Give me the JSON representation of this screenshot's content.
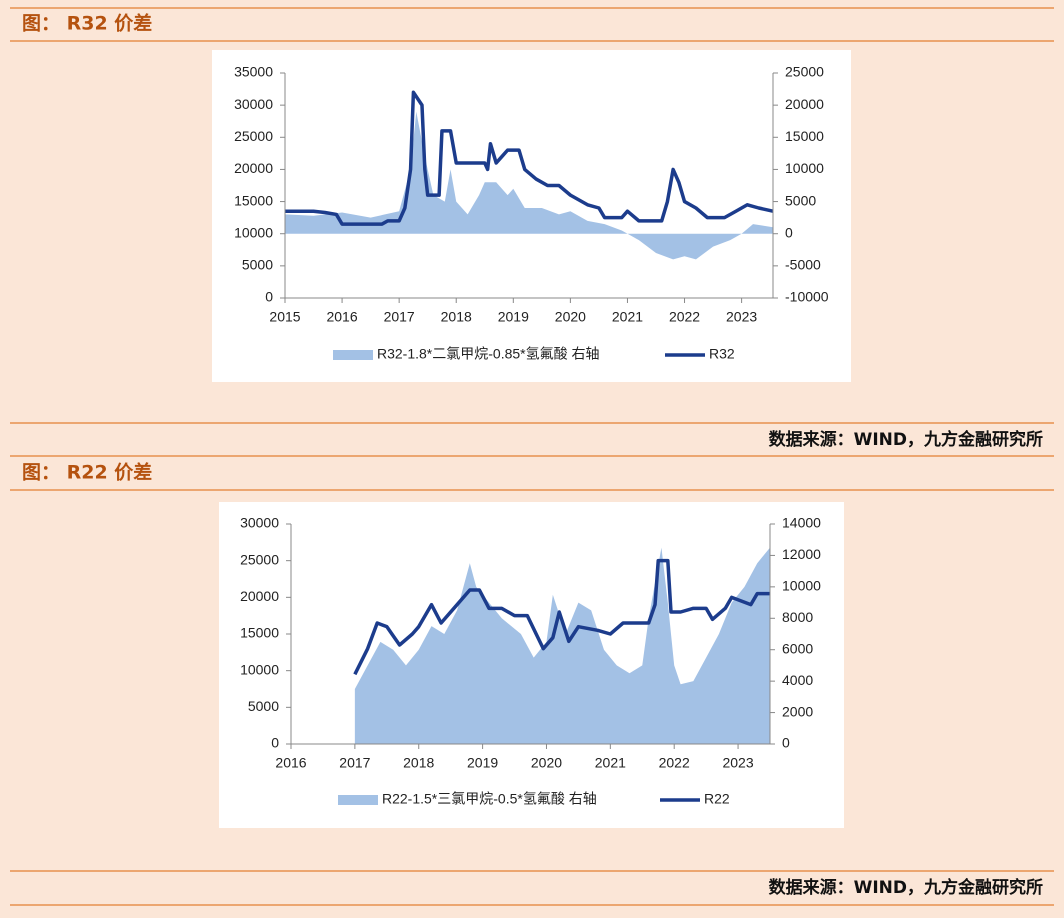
{
  "chart_data": [
    {
      "type": "combo",
      "title": "图： R32 价差",
      "source": "数据来源：WIND，九方金融研究所",
      "xlim": [
        2015,
        2023.55
      ],
      "xticks": [
        2015,
        2016,
        2017,
        2018,
        2019,
        2020,
        2021,
        2022,
        2023
      ],
      "ylim": [
        0,
        35000
      ],
      "yticks": [
        0,
        5000,
        10000,
        15000,
        20000,
        25000,
        30000,
        35000
      ],
      "y2lim": [
        -10000,
        25000
      ],
      "y2ticks": [
        -10000,
        -5000,
        0,
        5000,
        10000,
        15000,
        20000,
        25000
      ],
      "legend": "bottom",
      "series": [
        {
          "name": "R32-1.8*二氯甲烷-0.85*氢氟酸 右轴",
          "color": "#a3c1e5",
          "style": "area",
          "axis": "y2",
          "x": [
            2015.0,
            2015.5,
            2016.0,
            2016.5,
            2017.0,
            2017.2,
            2017.3,
            2017.45,
            2017.6,
            2017.8,
            2017.9,
            2018.0,
            2018.2,
            2018.4,
            2018.5,
            2018.7,
            2018.9,
            2019.0,
            2019.2,
            2019.5,
            2019.8,
            2020.0,
            2020.3,
            2020.6,
            2020.9,
            2021.2,
            2021.5,
            2021.8,
            2022.0,
            2022.2,
            2022.5,
            2022.8,
            2023.0,
            2023.2,
            2023.55
          ],
          "values": [
            3000,
            2800,
            3300,
            2500,
            3500,
            10000,
            19000,
            12000,
            6000,
            5000,
            10000,
            5000,
            3000,
            6000,
            8000,
            8000,
            6000,
            7000,
            4000,
            4000,
            3000,
            3500,
            2000,
            1500,
            500,
            -1000,
            -3000,
            -4000,
            -3500,
            -4000,
            -2000,
            -1000,
            0,
            1500,
            1000
          ]
        },
        {
          "name": "R32",
          "color": "#1c3c8c",
          "style": "line",
          "axis": "y",
          "x": [
            2015.0,
            2015.5,
            2015.7,
            2015.9,
            2016.0,
            2016.3,
            2016.7,
            2016.8,
            2017.0,
            2017.1,
            2017.2,
            2017.25,
            2017.4,
            2017.45,
            2017.5,
            2017.7,
            2017.75,
            2017.9,
            2018.0,
            2018.5,
            2018.55,
            2018.6,
            2018.7,
            2018.8,
            2018.9,
            2019.1,
            2019.2,
            2019.4,
            2019.6,
            2019.8,
            2020.0,
            2020.3,
            2020.5,
            2020.6,
            2020.9,
            2021.0,
            2021.2,
            2021.6,
            2021.7,
            2021.8,
            2021.9,
            2022.0,
            2022.2,
            2022.4,
            2022.7,
            2022.9,
            2023.1,
            2023.3,
            2023.55
          ],
          "values": [
            13500,
            13500,
            13300,
            13000,
            11500,
            11500,
            11500,
            12000,
            12000,
            14000,
            20000,
            32000,
            30000,
            20000,
            16000,
            16000,
            26000,
            26000,
            21000,
            21000,
            20000,
            24000,
            21000,
            22000,
            23000,
            23000,
            20000,
            18500,
            17500,
            17500,
            16000,
            14500,
            14000,
            12500,
            12500,
            13500,
            12000,
            12000,
            15000,
            20000,
            18000,
            15000,
            14000,
            12500,
            12500,
            13500,
            14500,
            14000,
            13500
          ]
        }
      ]
    },
    {
      "type": "combo",
      "title": "图： R22 价差",
      "source": "数据来源：WIND，九方金融研究所",
      "xlim": [
        2016,
        2023.5
      ],
      "xticks": [
        2016,
        2017,
        2018,
        2019,
        2020,
        2021,
        2022,
        2023
      ],
      "ylim": [
        0,
        30000
      ],
      "yticks": [
        0,
        5000,
        10000,
        15000,
        20000,
        25000,
        30000
      ],
      "y2lim": [
        0,
        14000
      ],
      "y2ticks": [
        0,
        2000,
        4000,
        6000,
        8000,
        10000,
        12000,
        14000
      ],
      "legend": "bottom",
      "series": [
        {
          "name": "R22-1.5*三氯甲烷-0.5*氢氟酸 右轴",
          "color": "#a3c1e5",
          "style": "area",
          "axis": "y2",
          "x": [
            2017.0,
            2017.2,
            2017.4,
            2017.6,
            2017.8,
            2018.0,
            2018.2,
            2018.4,
            2018.6,
            2018.8,
            2018.9,
            2019.1,
            2019.3,
            2019.6,
            2019.8,
            2020.0,
            2020.1,
            2020.3,
            2020.5,
            2020.7,
            2020.9,
            2021.1,
            2021.3,
            2021.5,
            2021.6,
            2021.8,
            2021.9,
            2022.0,
            2022.1,
            2022.3,
            2022.5,
            2022.7,
            2022.9,
            2023.1,
            2023.3,
            2023.5
          ],
          "values": [
            3500,
            5000,
            6500,
            6000,
            5000,
            6000,
            7500,
            7000,
            8500,
            11500,
            10000,
            9000,
            8000,
            7000,
            5500,
            6500,
            9500,
            7000,
            9000,
            8500,
            6000,
            5000,
            4500,
            5000,
            8000,
            12500,
            9000,
            5000,
            3800,
            4000,
            5500,
            7000,
            9000,
            10000,
            11500,
            12500
          ]
        },
        {
          "name": "R22",
          "color": "#1c3c8c",
          "style": "line",
          "axis": "y",
          "x": [
            2017.0,
            2017.2,
            2017.35,
            2017.5,
            2017.7,
            2017.9,
            2018.0,
            2018.2,
            2018.35,
            2018.6,
            2018.8,
            2018.95,
            2019.1,
            2019.3,
            2019.5,
            2019.7,
            2019.95,
            2020.1,
            2020.2,
            2020.35,
            2020.5,
            2020.8,
            2021.0,
            2021.2,
            2021.6,
            2021.7,
            2021.75,
            2021.9,
            2021.95,
            2022.1,
            2022.3,
            2022.5,
            2022.6,
            2022.8,
            2022.9,
            2023.2,
            2023.3,
            2023.5
          ],
          "values": [
            9500,
            13000,
            16500,
            16000,
            13500,
            15000,
            16000,
            19000,
            16500,
            19000,
            21000,
            21000,
            18500,
            18500,
            17500,
            17500,
            13000,
            14500,
            18000,
            14000,
            16000,
            15500,
            15000,
            16500,
            16500,
            19000,
            25000,
            25000,
            18000,
            18000,
            18500,
            18500,
            17000,
            18500,
            20000,
            19000,
            20500,
            20500
          ]
        }
      ]
    }
  ]
}
